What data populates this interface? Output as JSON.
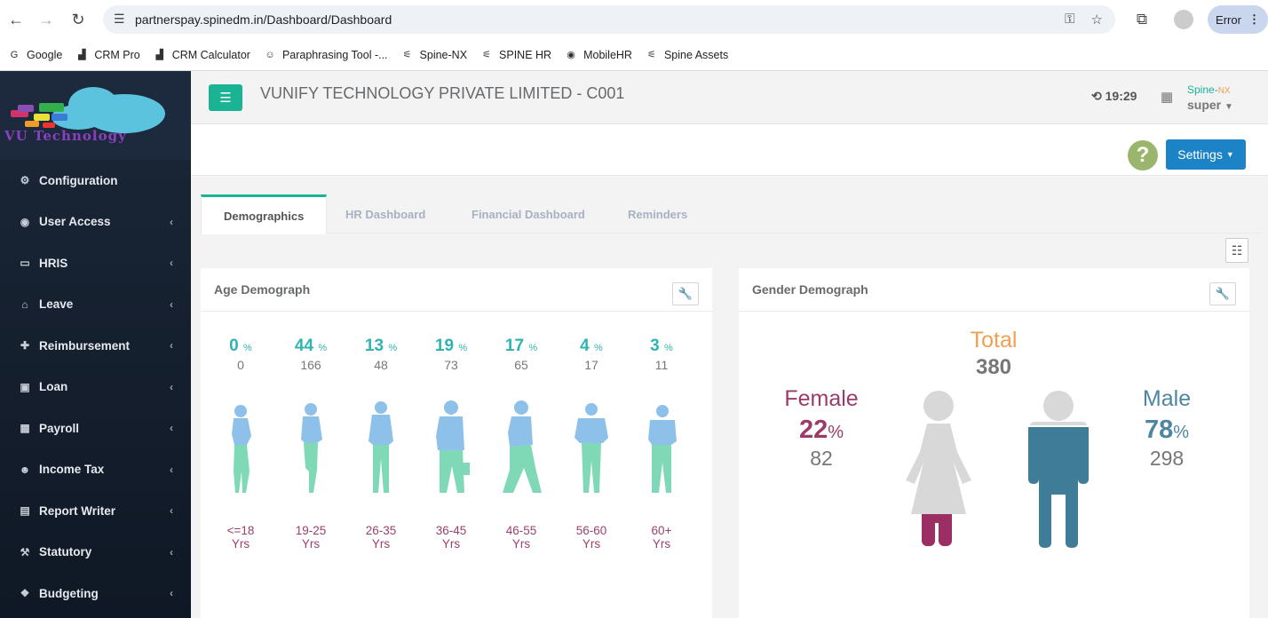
{
  "browser": {
    "url": "partnerspay.spinedm.in/Dashboard/Dashboard",
    "profile_label": "Error"
  },
  "bookmarks": [
    {
      "label": "Google",
      "icon": "google-icon"
    },
    {
      "label": "CRM Pro",
      "icon": "bar-chart-icon"
    },
    {
      "label": "CRM Calculator",
      "icon": "bar-chart-icon"
    },
    {
      "label": "Paraphrasing Tool -...",
      "icon": "robot-icon"
    },
    {
      "label": "Spine-NX",
      "icon": "spine-icon"
    },
    {
      "label": "SPINE HR",
      "icon": "spine-icon"
    },
    {
      "label": "MobileHR",
      "icon": "globe-icon"
    },
    {
      "label": "Spine Assets",
      "icon": "spine-icon"
    }
  ],
  "logo_text": "VU Technology",
  "sidebar": {
    "items": [
      {
        "label": "Configuration",
        "icon": "gears-icon",
        "has_submenu": false
      },
      {
        "label": "User Access",
        "icon": "user-circle-icon",
        "has_submenu": true
      },
      {
        "label": "HRIS",
        "icon": "id-card-icon",
        "has_submenu": true
      },
      {
        "label": "Leave",
        "icon": "bed-icon",
        "has_submenu": true
      },
      {
        "label": "Reimbursement",
        "icon": "gift-icon",
        "has_submenu": true
      },
      {
        "label": "Loan",
        "icon": "money-icon",
        "has_submenu": true
      },
      {
        "label": "Payroll",
        "icon": "calculator-icon",
        "has_submenu": true
      },
      {
        "label": "Income Tax",
        "icon": "users-icon",
        "has_submenu": true
      },
      {
        "label": "Report Writer",
        "icon": "file-icon",
        "has_submenu": true
      },
      {
        "label": "Statutory",
        "icon": "gavel-icon",
        "has_submenu": true
      },
      {
        "label": "Budgeting",
        "icon": "cubes-icon",
        "has_submenu": true
      }
    ]
  },
  "header": {
    "company": "VUNIFY TECHNOLOGY PRIVATE LIMITED - C001",
    "time": "19:29",
    "brand_main": "Spine-",
    "brand_suffix": "NX",
    "user": "super",
    "settings_label": "Settings",
    "help_label": "?"
  },
  "tabs": [
    {
      "label": "Demographics",
      "active": true
    },
    {
      "label": "HR Dashboard",
      "active": false
    },
    {
      "label": "Financial Dashboard",
      "active": false
    },
    {
      "label": "Reminders",
      "active": false
    }
  ],
  "age_panel": {
    "title": "Age Demograph",
    "pct_sign": "%",
    "groups": [
      {
        "pct": "0",
        "count": "0",
        "range": "<=18",
        "unit": "Yrs"
      },
      {
        "pct": "44",
        "count": "166",
        "range": "19-25",
        "unit": "Yrs"
      },
      {
        "pct": "13",
        "count": "48",
        "range": "26-35",
        "unit": "Yrs"
      },
      {
        "pct": "19",
        "count": "73",
        "range": "36-45",
        "unit": "Yrs"
      },
      {
        "pct": "17",
        "count": "65",
        "range": "46-55",
        "unit": "Yrs"
      },
      {
        "pct": "4",
        "count": "17",
        "range": "56-60",
        "unit": "Yrs"
      },
      {
        "pct": "3",
        "count": "11",
        "range": "60+",
        "unit": "Yrs"
      }
    ]
  },
  "gender_panel": {
    "title": "Gender Demograph",
    "total_label": "Total",
    "total": "380",
    "pct_sign": "%",
    "female": {
      "label": "Female",
      "pct": "22",
      "count": "82"
    },
    "male": {
      "label": "Male",
      "pct": "78",
      "count": "298"
    }
  },
  "colors": {
    "accent": "#1ab394",
    "primary": "#1c84c6",
    "age_pct": "#2fb4b1",
    "age_label": "#9a4070",
    "female": "#9b3b6b",
    "male": "#4e85a0",
    "total": "#f0a050",
    "figure_top": "#8ec1ea",
    "figure_bottom": "#7fd9b6"
  }
}
